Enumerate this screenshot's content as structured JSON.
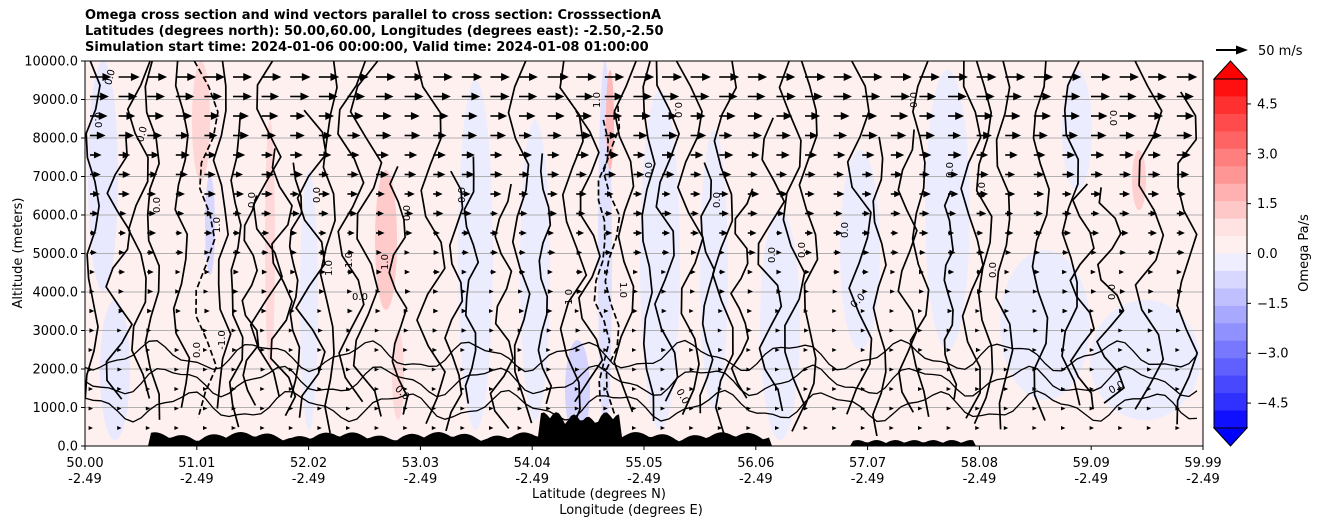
{
  "chart_data": {
    "type": "contour",
    "title_lines": [
      "Omega cross section and wind vectors parallel to cross section: CrosssectionA",
      "Latitudes (degrees north): 50.00,60.00, Longitudes (degrees east): -2.50,-2.50",
      "Simulation start time: 2024-01-06 00:00:00, Valid time: 2024-01-08 01:00:00"
    ],
    "ylabel": "Altitude (meters)",
    "xlabel_lines": [
      "Latitude (degrees N)",
      "Longitude (degrees E)"
    ],
    "ylim": [
      0,
      10000
    ],
    "y_ticks": [
      "0.0",
      "1000.0",
      "2000.0",
      "3000.0",
      "4000.0",
      "5000.0",
      "6000.0",
      "7000.0",
      "8000.0",
      "9000.0",
      "10000.0"
    ],
    "x_ticks": [
      {
        "lat": "50.00",
        "lon": "-2.49"
      },
      {
        "lat": "51.01",
        "lon": "-2.49"
      },
      {
        "lat": "52.02",
        "lon": "-2.49"
      },
      {
        "lat": "53.03",
        "lon": "-2.49"
      },
      {
        "lat": "54.04",
        "lon": "-2.49"
      },
      {
        "lat": "55.05",
        "lon": "-2.49"
      },
      {
        "lat": "56.06",
        "lon": "-2.49"
      },
      {
        "lat": "57.07",
        "lon": "-2.49"
      },
      {
        "lat": "58.08",
        "lon": "-2.49"
      },
      {
        "lat": "59.09",
        "lon": "-2.49"
      },
      {
        "lat": "59.99",
        "lon": "-2.49"
      }
    ],
    "y_grid": true,
    "colorbar": {
      "label": "Omega Pa/s",
      "range": [
        -5.25,
        5.25
      ],
      "ticks": [
        "4.5",
        "3.0",
        "1.5",
        "0.0",
        "−1.5",
        "−3.0",
        "−4.5"
      ],
      "colors_top_to_bottom": [
        "#ff1010",
        "#ff3030",
        "#ff4b4b",
        "#ff6464",
        "#ff7e7e",
        "#ff9696",
        "#ffb0b0",
        "#ffc8c8",
        "#ffe2e2",
        "#fff0f0",
        "#eeeeff",
        "#d8d8ff",
        "#c0c0ff",
        "#a8a8ff",
        "#9090ff",
        "#7878ff",
        "#6060ff",
        "#4848ff",
        "#3030ff",
        "#1010ff"
      ],
      "extend": "both"
    },
    "vector_key": {
      "label": "50 m/s"
    },
    "contour_labels": [
      "0.0",
      "1.0",
      "-1.0"
    ]
  }
}
